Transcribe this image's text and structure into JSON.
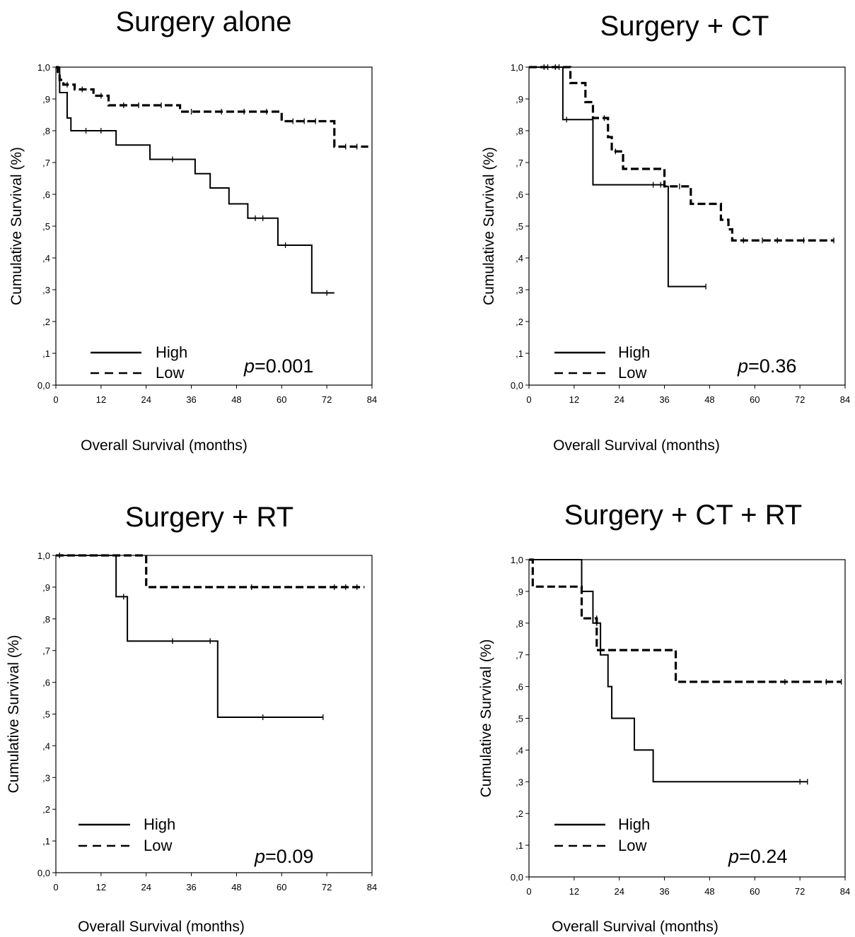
{
  "chart_data": [
    {
      "type": "line",
      "title": "Surgery alone",
      "xlabel": "Overall Survival (months)",
      "ylabel": "Cumulative Survival (%)",
      "xlim": [
        0,
        84
      ],
      "ylim": [
        0,
        1
      ],
      "x_ticks": [
        "0",
        "12",
        "24",
        "36",
        "48",
        "60",
        "72",
        "84"
      ],
      "y_ticks": [
        "0,0",
        ",1",
        ",2",
        ",3",
        ",4",
        ",5",
        ",6",
        ",7",
        ",8",
        ",9",
        "1,0"
      ],
      "legend": [
        "High",
        "Low"
      ],
      "p_prefix": "p",
      "p_value": "=0.001",
      "series": [
        {
          "name": "High",
          "style": "solid",
          "steps": [
            [
              0,
              1.0
            ],
            [
              1,
              0.92
            ],
            [
              3,
              0.84
            ],
            [
              4,
              0.8
            ],
            [
              16,
              0.755
            ],
            [
              25,
              0.71
            ],
            [
              37,
              0.665
            ],
            [
              41,
              0.62
            ],
            [
              46,
              0.57
            ],
            [
              51,
              0.525
            ],
            [
              59,
              0.44
            ],
            [
              68,
              0.29
            ],
            [
              74,
              0.29
            ]
          ],
          "censors": [
            [
              8,
              0.8
            ],
            [
              12,
              0.8
            ],
            [
              31,
              0.71
            ],
            [
              53,
              0.525
            ],
            [
              55,
              0.525
            ],
            [
              61,
              0.44
            ],
            [
              72,
              0.29
            ]
          ]
        },
        {
          "name": "Low",
          "style": "dashed",
          "steps": [
            [
              0,
              1.0
            ],
            [
              0.5,
              0.98
            ],
            [
              1,
              0.96
            ],
            [
              2,
              0.945
            ],
            [
              5,
              0.93
            ],
            [
              10,
              0.91
            ],
            [
              14,
              0.88
            ],
            [
              33,
              0.86
            ],
            [
              60,
              0.83
            ],
            [
              74,
              0.75
            ],
            [
              83,
              0.75
            ]
          ],
          "censors": [
            [
              3,
              0.945
            ],
            [
              7,
              0.93
            ],
            [
              12,
              0.91
            ],
            [
              18,
              0.88
            ],
            [
              22,
              0.88
            ],
            [
              28,
              0.88
            ],
            [
              36,
              0.86
            ],
            [
              44,
              0.86
            ],
            [
              50,
              0.86
            ],
            [
              56,
              0.86
            ],
            [
              63,
              0.83
            ],
            [
              66,
              0.83
            ],
            [
              69,
              0.83
            ],
            [
              77,
              0.75
            ],
            [
              80,
              0.75
            ]
          ]
        }
      ]
    },
    {
      "type": "line",
      "title": "Surgery + CT",
      "xlabel": "Overall Survival (months)",
      "ylabel": "Cumulative Survival (%)",
      "xlim": [
        0,
        84
      ],
      "ylim": [
        0,
        1
      ],
      "x_ticks": [
        "0",
        "12",
        "24",
        "36",
        "48",
        "60",
        "72",
        "84"
      ],
      "y_ticks": [
        "0,0",
        ",1",
        ",2",
        ",3",
        ",4",
        ",5",
        ",6",
        ",7",
        ",8",
        ",9",
        "1,0"
      ],
      "legend": [
        "High",
        "Low"
      ],
      "p_prefix": "p",
      "p_value": "=0.36",
      "series": [
        {
          "name": "High",
          "style": "solid",
          "steps": [
            [
              0,
              1.0
            ],
            [
              9,
              0.835
            ],
            [
              17,
              0.63
            ],
            [
              36,
              0.625
            ],
            [
              37,
              0.31
            ],
            [
              47,
              0.31
            ]
          ],
          "censors": [
            [
              4,
              1.0
            ],
            [
              7,
              1.0
            ],
            [
              10,
              0.835
            ],
            [
              33,
              0.63
            ],
            [
              35,
              0.63
            ],
            [
              47,
              0.31
            ]
          ]
        },
        {
          "name": "Low",
          "style": "dashed",
          "steps": [
            [
              0,
              1.0
            ],
            [
              11,
              0.95
            ],
            [
              15,
              0.89
            ],
            [
              17,
              0.84
            ],
            [
              21,
              0.78
            ],
            [
              22,
              0.735
            ],
            [
              25,
              0.68
            ],
            [
              36,
              0.625
            ],
            [
              43,
              0.57
            ],
            [
              51,
              0.52
            ],
            [
              53,
              0.49
            ],
            [
              54,
              0.455
            ],
            [
              81,
              0.455
            ]
          ],
          "censors": [
            [
              5,
              1.0
            ],
            [
              8,
              1.0
            ],
            [
              20,
              0.84
            ],
            [
              23,
              0.735
            ],
            [
              40,
              0.625
            ],
            [
              57,
              0.455
            ],
            [
              62,
              0.455
            ],
            [
              66,
              0.455
            ],
            [
              73,
              0.455
            ],
            [
              81,
              0.455
            ]
          ]
        }
      ]
    },
    {
      "type": "line",
      "title": "Surgery + RT",
      "xlabel": "Overall Survival (months)",
      "ylabel": "Cumulative Survival (%)",
      "xlim": [
        0,
        84
      ],
      "ylim": [
        0,
        1
      ],
      "x_ticks": [
        "0",
        "12",
        "24",
        "36",
        "48",
        "60",
        "72",
        "84"
      ],
      "y_ticks": [
        "0,0",
        ",1",
        ",2",
        ",3",
        ",4",
        ",5",
        ",6",
        ",7",
        ",8",
        ",9",
        "1,0"
      ],
      "legend": [
        "High",
        "Low"
      ],
      "p_prefix": "p",
      "p_value": "=0.09",
      "series": [
        {
          "name": "High",
          "style": "solid",
          "steps": [
            [
              0,
              1.0
            ],
            [
              16,
              0.87
            ],
            [
              19,
              0.73
            ],
            [
              43,
              0.49
            ],
            [
              71,
              0.49
            ]
          ],
          "censors": [
            [
              18,
              0.87
            ],
            [
              31,
              0.73
            ],
            [
              41,
              0.73
            ],
            [
              55,
              0.49
            ],
            [
              71,
              0.49
            ]
          ]
        },
        {
          "name": "Low",
          "style": "dashed",
          "steps": [
            [
              0,
              1.0
            ],
            [
              24,
              0.9
            ],
            [
              82,
              0.9
            ]
          ],
          "censors": [
            [
              1,
              1.0
            ],
            [
              52,
              0.9
            ],
            [
              74,
              0.9
            ],
            [
              77,
              0.9
            ],
            [
              80,
              0.9
            ]
          ]
        }
      ]
    },
    {
      "type": "line",
      "title": "Surgery + CT + RT",
      "xlabel": "Overall Survival (months)",
      "ylabel": "Cumulative Survival (%)",
      "xlim": [
        0,
        84
      ],
      "ylim": [
        0,
        1
      ],
      "x_ticks": [
        "0",
        "12",
        "24",
        "36",
        "48",
        "60",
        "72",
        "84"
      ],
      "y_ticks": [
        "0,0",
        ",1",
        ",2",
        ",3",
        ",4",
        ",5",
        ",6",
        ",7",
        ",8",
        ",9",
        "1,0"
      ],
      "legend": [
        "High",
        "Low"
      ],
      "p_prefix": "p",
      "p_value": "=0.24",
      "series": [
        {
          "name": "High",
          "style": "solid",
          "steps": [
            [
              0,
              1.0
            ],
            [
              14,
              0.9
            ],
            [
              17,
              0.8
            ],
            [
              19,
              0.7
            ],
            [
              21,
              0.6
            ],
            [
              22,
              0.5
            ],
            [
              28,
              0.4
            ],
            [
              33,
              0.3
            ],
            [
              74,
              0.3
            ]
          ],
          "censors": [
            [
              18,
              0.8
            ],
            [
              72,
              0.3
            ],
            [
              74,
              0.3
            ]
          ]
        },
        {
          "name": "Low",
          "style": "dashed",
          "steps": [
            [
              0,
              1.0
            ],
            [
              1,
              0.915
            ],
            [
              14,
              0.815
            ],
            [
              18,
              0.715
            ],
            [
              38,
              0.715
            ],
            [
              39,
              0.615
            ],
            [
              83,
              0.615
            ]
          ],
          "censors": [
            [
              18,
              0.815
            ],
            [
              68,
              0.615
            ],
            [
              79,
              0.615
            ],
            [
              83,
              0.615
            ]
          ]
        }
      ]
    }
  ]
}
